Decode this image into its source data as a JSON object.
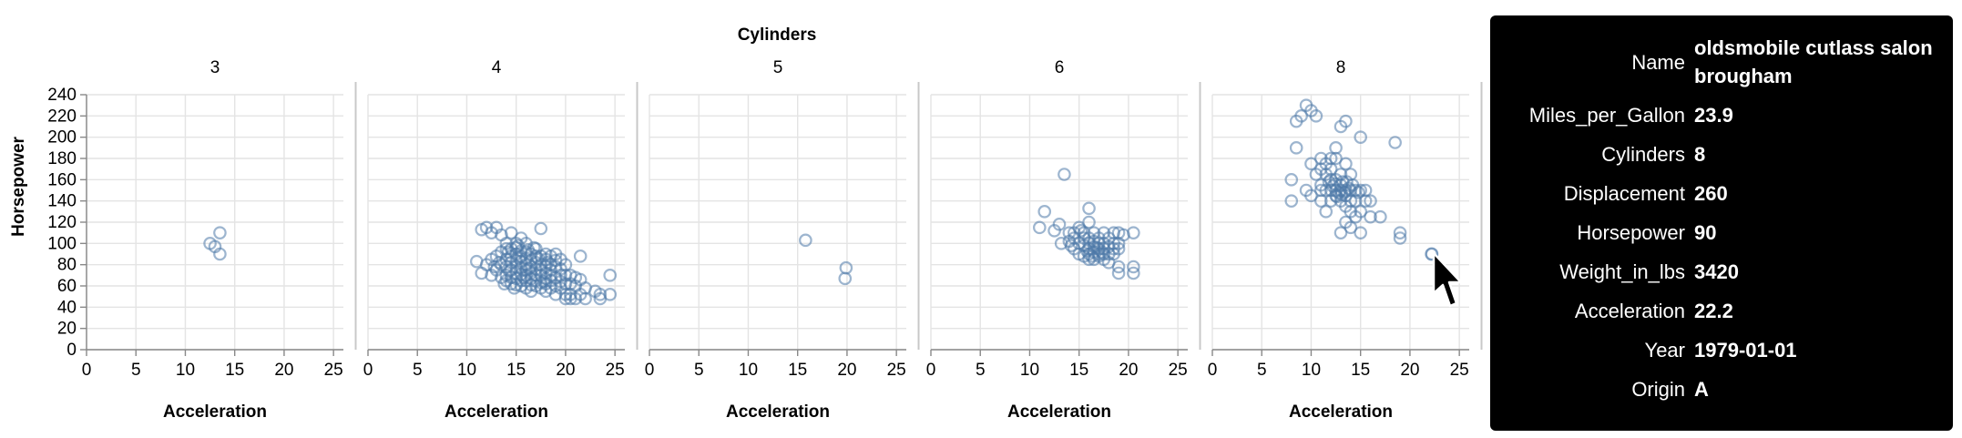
{
  "chart_data": {
    "type": "scatter",
    "facet_title": "Cylinders",
    "xlabel": "Acceleration",
    "ylabel": "Horsepower",
    "xlim": [
      0,
      26
    ],
    "ylim": [
      0,
      240
    ],
    "x_ticks": [
      0,
      5,
      10,
      15,
      20,
      25
    ],
    "y_ticks": [
      0,
      20,
      40,
      60,
      80,
      100,
      120,
      140,
      160,
      180,
      200,
      220,
      240
    ],
    "facets": [
      {
        "label": "3",
        "points": [
          [
            12.5,
            100
          ],
          [
            13.5,
            110
          ],
          [
            13.5,
            90
          ],
          [
            13.0,
            97
          ]
        ]
      },
      {
        "label": "4",
        "points": [
          [
            11.5,
            113
          ],
          [
            12.0,
            115
          ],
          [
            12.5,
            110
          ],
          [
            13.0,
            115
          ],
          [
            13.5,
            108
          ],
          [
            14.0,
            100
          ],
          [
            14.5,
            110
          ],
          [
            15.0,
            100
          ],
          [
            15.5,
            105
          ],
          [
            16.0,
            100
          ],
          [
            17.0,
            95
          ],
          [
            17.5,
            114
          ],
          [
            11.0,
            83
          ],
          [
            11.5,
            72
          ],
          [
            12.0,
            80
          ],
          [
            12.5,
            85
          ],
          [
            12.5,
            70
          ],
          [
            13.0,
            88
          ],
          [
            13.0,
            75
          ],
          [
            13.5,
            92
          ],
          [
            13.5,
            80
          ],
          [
            13.5,
            68
          ],
          [
            14.0,
            95
          ],
          [
            14.0,
            85
          ],
          [
            14.0,
            78
          ],
          [
            14.0,
            70
          ],
          [
            14.0,
            65
          ],
          [
            14.5,
            95
          ],
          [
            14.5,
            88
          ],
          [
            14.5,
            82
          ],
          [
            14.5,
            75
          ],
          [
            14.5,
            68
          ],
          [
            14.5,
            62
          ],
          [
            15.0,
            96
          ],
          [
            15.0,
            90
          ],
          [
            15.0,
            84
          ],
          [
            15.0,
            78
          ],
          [
            15.0,
            72
          ],
          [
            15.0,
            67
          ],
          [
            15.0,
            61
          ],
          [
            15.5,
            93
          ],
          [
            15.5,
            88
          ],
          [
            15.5,
            83
          ],
          [
            15.5,
            77
          ],
          [
            15.5,
            71
          ],
          [
            15.5,
            65
          ],
          [
            15.5,
            60
          ],
          [
            16.0,
            92
          ],
          [
            16.0,
            86
          ],
          [
            16.0,
            80
          ],
          [
            16.0,
            75
          ],
          [
            16.0,
            70
          ],
          [
            16.0,
            65
          ],
          [
            16.0,
            58
          ],
          [
            16.5,
            90
          ],
          [
            16.5,
            84
          ],
          [
            16.5,
            78
          ],
          [
            16.5,
            72
          ],
          [
            16.5,
            67
          ],
          [
            16.5,
            61
          ],
          [
            16.5,
            55
          ],
          [
            17.0,
            88
          ],
          [
            17.0,
            82
          ],
          [
            17.0,
            76
          ],
          [
            17.0,
            70
          ],
          [
            17.0,
            65
          ],
          [
            17.0,
            60
          ],
          [
            17.5,
            88
          ],
          [
            17.5,
            80
          ],
          [
            17.5,
            75
          ],
          [
            17.5,
            70
          ],
          [
            17.5,
            63
          ],
          [
            17.5,
            58
          ],
          [
            18.0,
            90
          ],
          [
            18.0,
            85
          ],
          [
            18.0,
            78
          ],
          [
            18.0,
            72
          ],
          [
            18.0,
            67
          ],
          [
            18.0,
            62
          ],
          [
            18.0,
            55
          ],
          [
            18.5,
            88
          ],
          [
            18.5,
            80
          ],
          [
            18.5,
            75
          ],
          [
            18.5,
            70
          ],
          [
            18.5,
            65
          ],
          [
            18.5,
            58
          ],
          [
            19.0,
            90
          ],
          [
            19.0,
            84
          ],
          [
            19.0,
            78
          ],
          [
            19.0,
            68
          ],
          [
            19.0,
            60
          ],
          [
            19.0,
            52
          ],
          [
            19.5,
            85
          ],
          [
            19.5,
            76
          ],
          [
            19.5,
            70
          ],
          [
            19.5,
            64
          ],
          [
            19.5,
            58
          ],
          [
            20.0,
            80
          ],
          [
            20.0,
            70
          ],
          [
            20.0,
            62
          ],
          [
            20.0,
            52
          ],
          [
            20.0,
            48
          ],
          [
            20.5,
            70
          ],
          [
            20.5,
            62
          ],
          [
            20.5,
            52
          ],
          [
            20.5,
            48
          ],
          [
            21.0,
            68
          ],
          [
            21.0,
            60
          ],
          [
            21.0,
            48
          ],
          [
            21.5,
            88
          ],
          [
            21.5,
            66
          ],
          [
            21.5,
            52
          ],
          [
            22.0,
            58
          ],
          [
            22.0,
            48
          ],
          [
            23.0,
            55
          ],
          [
            23.5,
            52
          ],
          [
            23.5,
            48
          ],
          [
            24.5,
            70
          ],
          [
            24.5,
            52
          ],
          [
            14.2,
            92
          ],
          [
            15.2,
            98
          ],
          [
            16.2,
            94
          ],
          [
            15.8,
            68
          ],
          [
            14.8,
            58
          ],
          [
            13.8,
            62
          ],
          [
            16.8,
            96
          ],
          [
            17.2,
            86
          ],
          [
            18.2,
            82
          ],
          [
            15.3,
            86
          ],
          [
            14.3,
            74
          ],
          [
            16.3,
            76
          ],
          [
            17.8,
            64
          ],
          [
            13.3,
            82
          ],
          [
            12.8,
            78
          ]
        ]
      },
      {
        "label": "5",
        "points": [
          [
            15.8,
            103
          ],
          [
            19.9,
            77
          ],
          [
            19.8,
            67
          ]
        ]
      },
      {
        "label": "6",
        "points": [
          [
            11.0,
            115
          ],
          [
            11.5,
            130
          ],
          [
            12.5,
            112
          ],
          [
            13.0,
            118
          ],
          [
            13.5,
            165
          ],
          [
            14.0,
            110
          ],
          [
            14.0,
            102
          ],
          [
            14.5,
            110
          ],
          [
            14.5,
            95
          ],
          [
            15.0,
            115
          ],
          [
            15.0,
            100
          ],
          [
            15.0,
            90
          ],
          [
            15.5,
            110
          ],
          [
            15.5,
            105
          ],
          [
            15.5,
            98
          ],
          [
            15.5,
            88
          ],
          [
            16.0,
            133
          ],
          [
            16.0,
            120
          ],
          [
            16.0,
            105
          ],
          [
            16.0,
            100
          ],
          [
            16.0,
            95
          ],
          [
            16.0,
            90
          ],
          [
            16.0,
            85
          ],
          [
            16.5,
            110
          ],
          [
            16.5,
            102
          ],
          [
            16.5,
            97
          ],
          [
            16.5,
            92
          ],
          [
            16.5,
            85
          ],
          [
            17.0,
            105
          ],
          [
            17.0,
            100
          ],
          [
            17.0,
            95
          ],
          [
            17.0,
            90
          ],
          [
            17.0,
            88
          ],
          [
            17.5,
            110
          ],
          [
            17.5,
            100
          ],
          [
            17.5,
            95
          ],
          [
            17.5,
            90
          ],
          [
            17.5,
            85
          ],
          [
            18.0,
            105
          ],
          [
            18.0,
            97
          ],
          [
            18.0,
            90
          ],
          [
            18.0,
            82
          ],
          [
            18.5,
            110
          ],
          [
            18.5,
            100
          ],
          [
            18.5,
            95
          ],
          [
            18.5,
            90
          ],
          [
            19.0,
            110
          ],
          [
            19.0,
            100
          ],
          [
            19.0,
            95
          ],
          [
            19.0,
            78
          ],
          [
            19.0,
            72
          ],
          [
            19.5,
            108
          ],
          [
            20.5,
            110
          ],
          [
            20.5,
            78
          ],
          [
            20.5,
            72
          ],
          [
            14.5,
            105
          ],
          [
            15.2,
            112
          ],
          [
            16.8,
            96
          ],
          [
            15.8,
            93
          ],
          [
            17.3,
            92
          ],
          [
            14.2,
            98
          ],
          [
            13.2,
            100
          ],
          [
            16.3,
            88
          ]
        ]
      },
      {
        "label": "8",
        "points": [
          [
            8.0,
            140
          ],
          [
            8.0,
            160
          ],
          [
            8.5,
            190
          ],
          [
            8.5,
            215
          ],
          [
            9.0,
            220
          ],
          [
            9.5,
            230
          ],
          [
            9.5,
            150
          ],
          [
            10.0,
            225
          ],
          [
            10.0,
            175
          ],
          [
            10.0,
            145
          ],
          [
            10.5,
            220
          ],
          [
            10.5,
            165
          ],
          [
            11.0,
            180
          ],
          [
            11.0,
            170
          ],
          [
            11.0,
            155
          ],
          [
            11.0,
            150
          ],
          [
            11.0,
            140
          ],
          [
            11.5,
            175
          ],
          [
            11.5,
            165
          ],
          [
            11.5,
            150
          ],
          [
            11.5,
            130
          ],
          [
            12.0,
            180
          ],
          [
            12.0,
            170
          ],
          [
            12.0,
            160
          ],
          [
            12.0,
            150
          ],
          [
            12.0,
            140
          ],
          [
            12.5,
            190
          ],
          [
            12.5,
            180
          ],
          [
            12.5,
            160
          ],
          [
            12.5,
            150
          ],
          [
            12.5,
            145
          ],
          [
            13.0,
            210
          ],
          [
            13.0,
            165
          ],
          [
            13.0,
            155
          ],
          [
            13.0,
            150
          ],
          [
            13.0,
            140
          ],
          [
            13.0,
            110
          ],
          [
            13.5,
            215
          ],
          [
            13.5,
            175
          ],
          [
            13.5,
            150
          ],
          [
            13.5,
            145
          ],
          [
            13.5,
            135
          ],
          [
            13.5,
            120
          ],
          [
            14.0,
            165
          ],
          [
            14.0,
            150
          ],
          [
            14.0,
            140
          ],
          [
            14.0,
            130
          ],
          [
            14.0,
            115
          ],
          [
            14.5,
            150
          ],
          [
            14.5,
            140
          ],
          [
            14.5,
            125
          ],
          [
            15.0,
            200
          ],
          [
            15.0,
            150
          ],
          [
            15.0,
            130
          ],
          [
            15.0,
            110
          ],
          [
            15.5,
            150
          ],
          [
            15.5,
            140
          ],
          [
            16.0,
            140
          ],
          [
            16.0,
            125
          ],
          [
            17.0,
            125
          ],
          [
            18.5,
            195
          ],
          [
            19.0,
            110
          ],
          [
            19.0,
            105
          ],
          [
            12.2,
            154
          ],
          [
            12.8,
            148
          ],
          [
            13.2,
            158
          ],
          [
            13.8,
            152
          ],
          [
            12.6,
            144
          ],
          [
            13.4,
            148
          ],
          [
            14.2,
            155
          ],
          [
            13.6,
            158
          ],
          [
            12.4,
            156
          ],
          [
            14.8,
            148
          ],
          [
            11.8,
            158
          ],
          [
            13.1,
            146
          ]
        ],
        "hover_point": [
          22.2,
          90
        ]
      }
    ]
  },
  "tooltip": {
    "rows": [
      {
        "key": "Name",
        "value": "oldsmobile cutlass salon brougham"
      },
      {
        "key": "Miles_per_Gallon",
        "value": "23.9"
      },
      {
        "key": "Cylinders",
        "value": "8"
      },
      {
        "key": "Displacement",
        "value": "260"
      },
      {
        "key": "Horsepower",
        "value": "90"
      },
      {
        "key": "Weight_in_lbs",
        "value": "3420"
      },
      {
        "key": "Acceleration",
        "value": "22.2"
      },
      {
        "key": "Year",
        "value": "1979-01-01"
      },
      {
        "key": "Origin",
        "value": "A"
      }
    ]
  },
  "colors": {
    "point": "#4c78a8",
    "tooltip_bg": "#000000"
  },
  "cursor_icon": "arrow-pointer-icon"
}
